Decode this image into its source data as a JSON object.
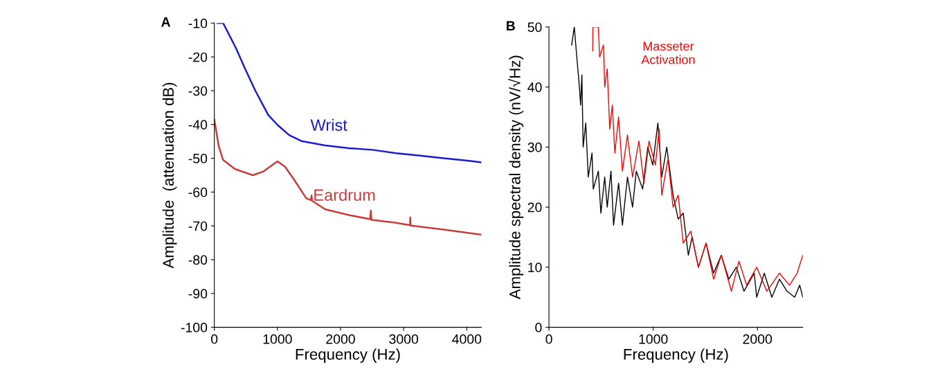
{
  "chart_data": [
    {
      "type": "line",
      "xlabel": "Frequency (Hz)",
      "ylabel": "Amplitude  (attenuation dB)",
      "annotations": [
        "A"
      ],
      "xlim": [
        0,
        4230
      ],
      "ylim": [
        -100,
        -10
      ],
      "xticks": [
        0,
        1000,
        2000,
        3000,
        4000
      ],
      "yticks": [
        -10,
        -20,
        -30,
        -40,
        -50,
        -60,
        -70,
        -80,
        -90,
        -100
      ],
      "grid": false,
      "legend": false,
      "marker": "none",
      "line_style": "solid",
      "series": [
        {
          "name": "Wrist",
          "color": "#1c1ccc",
          "x": [
            50,
            140,
            340,
            500,
            650,
            855,
            1005,
            1190,
            1380,
            1755,
            2130,
            2505,
            2880,
            3260,
            3630,
            4010,
            4225
          ],
          "values": [
            -10,
            -10,
            -17.3,
            -24,
            -30,
            -37.2,
            -40.2,
            -43.2,
            -44.9,
            -46.2,
            -47,
            -47.5,
            -48.5,
            -49.2,
            -50,
            -50.7,
            -51.2
          ]
        },
        {
          "name": "Eardrum",
          "color": "#c83c3c",
          "x": [
            0,
            30,
            70,
            140,
            330,
            610,
            780,
            1000,
            1120,
            1270,
            1455,
            1530,
            1540,
            1550,
            1755,
            2130,
            2470,
            2480,
            2490,
            2880,
            3100,
            3105,
            3110,
            3630,
            4225
          ],
          "values": [
            -38.6,
            -41.9,
            -46.5,
            -50.5,
            -53.2,
            -55,
            -53.9,
            -50.9,
            -52.5,
            -56.5,
            -61.8,
            -62.4,
            -61,
            -62.6,
            -65.1,
            -66.8,
            -68,
            -65.5,
            -68.2,
            -69.1,
            -69.8,
            -67.5,
            -69.9,
            -71.1,
            -72.6
          ]
        }
      ]
    },
    {
      "type": "line",
      "xlabel": "Frequency (Hz)",
      "ylabel": "Amplitude spectral density (nV/√Hz)",
      "annotations": [
        "B"
      ],
      "xlim": [
        0,
        2435
      ],
      "ylim": [
        0,
        50
      ],
      "xticks": [
        0,
        1000,
        2000
      ],
      "yticks": [
        0,
        10,
        20,
        30,
        40,
        50
      ],
      "grid": false,
      "legend": false,
      "marker": "none",
      "line_style": "solid",
      "series": [
        {
          "color": "#000000",
          "x": [
            218,
            243,
            267,
            292,
            304,
            316,
            328,
            353,
            377,
            413,
            425,
            474,
            498,
            535,
            559,
            595,
            620,
            668,
            705,
            753,
            802,
            838,
            899,
            948,
            996,
            1045,
            1082,
            1130,
            1191,
            1240,
            1288,
            1337,
            1373,
            1434,
            1507,
            1580,
            1653,
            1726,
            1798,
            1871,
            1969,
            1993,
            2066,
            2138,
            2211,
            2284,
            2357,
            2406,
            2435
          ],
          "values": [
            47,
            50,
            45,
            40,
            37,
            42,
            30,
            34,
            25,
            29,
            23,
            26,
            19,
            25,
            20,
            26,
            17,
            24,
            17,
            25,
            20,
            26,
            23,
            30,
            27,
            34,
            25,
            30,
            22,
            18,
            19,
            12,
            15,
            10,
            14,
            9,
            12,
            8,
            10,
            6,
            9,
            5,
            9,
            5,
            8,
            6,
            5,
            7,
            5
          ]
        },
        {
          "name": "Masseter\nActivation",
          "color": "#ff0000",
          "x": [
            420,
            422,
            474,
            486,
            523,
            535,
            559,
            583,
            608,
            632,
            668,
            705,
            753,
            802,
            863,
            911,
            960,
            1021,
            1057,
            1082,
            1142,
            1191,
            1240,
            1288,
            1361,
            1434,
            1507,
            1580,
            1653,
            1750,
            1823,
            1896,
            1993,
            2090,
            2211,
            2308,
            2381,
            2435
          ],
          "values": [
            46,
            50,
            50,
            45,
            47,
            40,
            43,
            33,
            37,
            29,
            35,
            26,
            32,
            25,
            31,
            24,
            31,
            27,
            33,
            22,
            28,
            20,
            22,
            14,
            16,
            10,
            14,
            8,
            12,
            6,
            11,
            7,
            10,
            6,
            9,
            7,
            9,
            12
          ]
        }
      ]
    }
  ]
}
